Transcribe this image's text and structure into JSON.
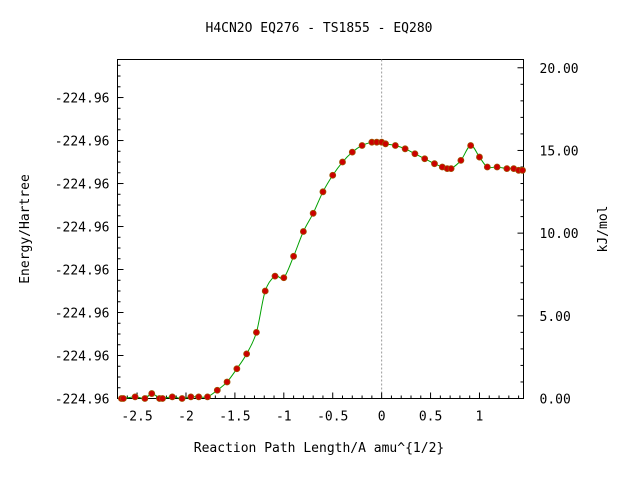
{
  "chart_data": {
    "type": "line",
    "title": "H4CN2O   EQ276 - TS1855 - EQ280",
    "xlabel": "Reaction Path Length/A amu^{1/2}",
    "ylabel_left": "Energy/Hartree",
    "ylabel_right": "kJ/mol",
    "xlim": [
      -2.7,
      1.45
    ],
    "ylim_kjmol": [
      0,
      20.5
    ],
    "x_ticks": [
      -2.5,
      -2,
      -1.5,
      -1,
      -0.5,
      0,
      0.5,
      1
    ],
    "x_tick_labels": [
      "-2.5",
      "-2",
      "-1.5",
      "-1",
      "-0.5",
      "0",
      "0.5",
      "1"
    ],
    "left_ticks_kjmol": [
      0,
      2.6,
      5.2,
      7.8,
      10.4,
      13.0,
      15.6,
      18.2
    ],
    "left_tick_labels": [
      "-224.96",
      "-224.96",
      "-224.96",
      "-224.96",
      "-224.96",
      "-224.96",
      "-224.96",
      "-224.96"
    ],
    "right_ticks": [
      0,
      5,
      10,
      15,
      20
    ],
    "right_tick_labels": [
      "0.00",
      "5.00",
      "10.00",
      "15.00",
      "20.00"
    ],
    "ts_marker_x": 0,
    "colors": {
      "line": "#00a000",
      "points": "#cc0000",
      "point_edge": "#a05000",
      "ts_line": "#999999"
    },
    "series": [
      {
        "x": [
          -2.66,
          -2.64,
          -2.52,
          -2.42,
          -2.35,
          -2.27,
          -2.24,
          -2.14,
          -2.04,
          -1.95,
          -1.87,
          -1.78,
          -1.68,
          -1.58,
          -1.48,
          -1.38,
          -1.28,
          -1.19,
          -1.09,
          -1.0,
          -0.9,
          -0.8,
          -0.7,
          -0.6,
          -0.5,
          -0.4,
          -0.3,
          -0.2,
          -0.1,
          -0.05,
          0.0,
          0.04,
          0.14,
          0.24,
          0.34,
          0.44,
          0.54,
          0.62,
          0.67,
          0.71,
          0.81,
          0.91,
          1.0,
          1.08,
          1.18,
          1.28,
          1.35,
          1.4,
          1.44
        ],
        "y": [
          0.0,
          0.0,
          0.1,
          0.0,
          0.3,
          0.0,
          0.0,
          0.1,
          0.0,
          0.1,
          0.1,
          0.1,
          0.5,
          1.0,
          1.8,
          2.7,
          4.0,
          6.5,
          7.4,
          7.3,
          8.6,
          10.1,
          11.2,
          12.5,
          13.5,
          14.3,
          14.9,
          15.3,
          15.5,
          15.5,
          15.5,
          15.4,
          15.3,
          15.1,
          14.8,
          14.5,
          14.2,
          14.0,
          13.9,
          13.9,
          14.4,
          15.3,
          14.6,
          14.0,
          14.0,
          13.9,
          13.9,
          13.8,
          13.8
        ]
      }
    ]
  }
}
